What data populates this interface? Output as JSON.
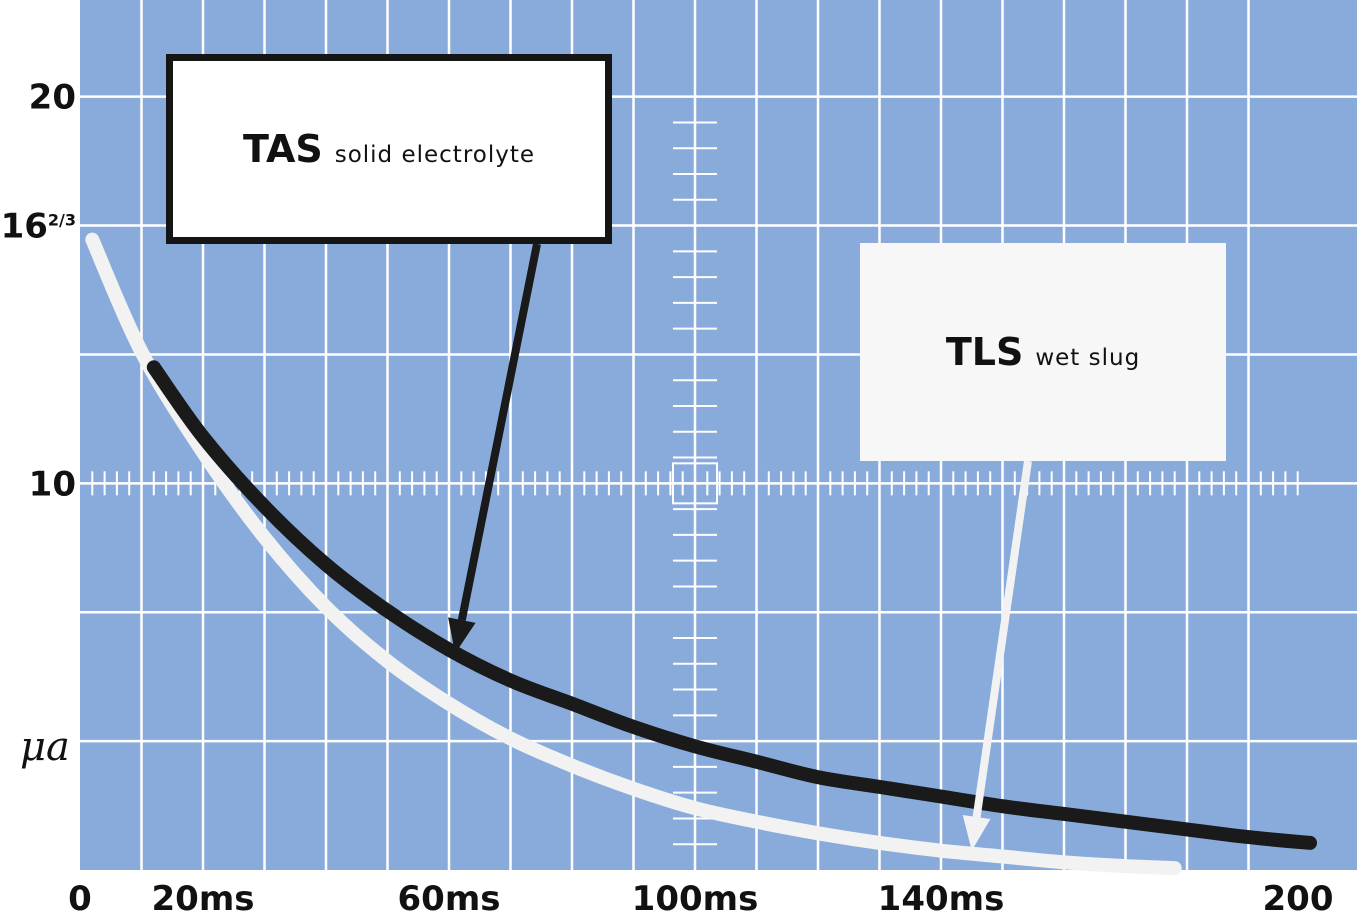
{
  "colors": {
    "background": "#88abdb",
    "grid": "#ffffff",
    "tas_curve": "#1a1a1a",
    "tls_curve": "#f2f2f2"
  },
  "chart_data": {
    "type": "line",
    "title": "",
    "xlabel": "",
    "ylabel": "μa",
    "xlim": [
      0,
      200
    ],
    "ylim": [
      0,
      22.5
    ],
    "grid": true,
    "x_tick_labels": [
      {
        "value": 0,
        "label": "0"
      },
      {
        "value": 20,
        "label": "20ms"
      },
      {
        "value": 60,
        "label": "60ms"
      },
      {
        "value": 100,
        "label": "100ms"
      },
      {
        "value": 140,
        "label": "140ms"
      },
      {
        "value": 200,
        "label": "200"
      }
    ],
    "y_tick_labels": [
      {
        "value": 20,
        "label": "20",
        "fraction": ""
      },
      {
        "value": 16.67,
        "label": "16",
        "fraction": "2/3"
      },
      {
        "value": 10,
        "label": "10",
        "fraction": ""
      }
    ],
    "series": [
      {
        "name": "TAS solid electrolyte",
        "x": [
          12,
          20,
          30,
          40,
          50,
          60,
          70,
          80,
          90,
          100,
          110,
          120,
          130,
          140,
          150,
          160,
          170,
          180,
          190,
          200
        ],
        "values": [
          13.0,
          11.2,
          9.4,
          7.9,
          6.7,
          5.7,
          4.9,
          4.3,
          3.7,
          3.2,
          2.8,
          2.4,
          2.15,
          1.9,
          1.65,
          1.45,
          1.25,
          1.05,
          0.85,
          0.7
        ]
      },
      {
        "name": "TLS wet slug",
        "x": [
          2,
          10,
          20,
          30,
          40,
          50,
          60,
          70,
          80,
          90,
          100,
          110,
          120,
          130,
          140,
          150,
          160,
          170,
          178
        ],
        "values": [
          16.3,
          13.4,
          10.8,
          8.6,
          6.8,
          5.4,
          4.3,
          3.4,
          2.7,
          2.1,
          1.6,
          1.25,
          0.95,
          0.7,
          0.5,
          0.35,
          0.2,
          0.1,
          0.05
        ]
      }
    ],
    "annotations": [
      {
        "bold": "TAS",
        "text": "solid electrolyte",
        "points_to": {
          "x": 61,
          "y": 5.6
        }
      },
      {
        "bold": "TLS",
        "text": "wet slug",
        "points_to": {
          "x": 145,
          "y": 0.5
        }
      }
    ]
  }
}
